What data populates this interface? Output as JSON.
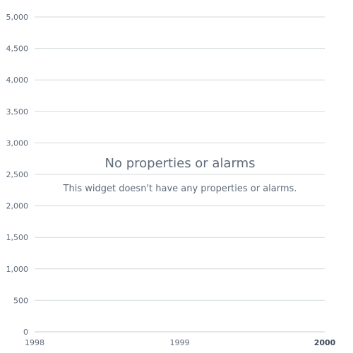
{
  "chart_data": {
    "type": "line",
    "title": "",
    "xlabel": "",
    "ylabel": "",
    "x_ticks": [
      "1998",
      "1999",
      "2000"
    ],
    "y_ticks": [
      "0",
      "500",
      "1,000",
      "1,500",
      "2,000",
      "2,500",
      "3,000",
      "3,500",
      "4,000",
      "4,500",
      "5,000"
    ],
    "xlim": [
      1998,
      2000
    ],
    "ylim": [
      0,
      5000
    ],
    "grid": true,
    "series": []
  },
  "empty_state": {
    "title": "No properties or alarms",
    "message": "This widget doesn't have any properties or alarms."
  },
  "colors": {
    "grid": "#d5dbdb",
    "axis": "#c9ced3",
    "tick_text": "#5f6b7a",
    "tick_text_emphasis": "#414d5c"
  }
}
